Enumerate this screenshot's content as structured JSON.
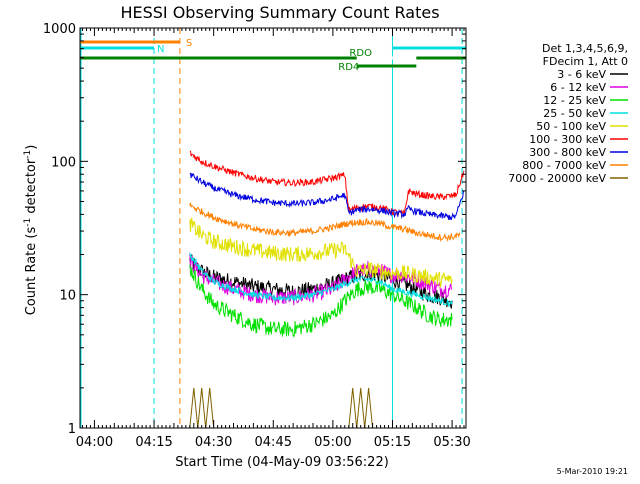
{
  "chart_data": {
    "type": "line",
    "title": "HESSI Observing Summary Count Rates",
    "xlabel": "Start Time (04-May-09 03:56:22)",
    "ylabel_main": "Count Rate (s",
    "ylabel_sup1": "-1",
    "ylabel_mid": " detector",
    "ylabel_sup2": "-1",
    "ylabel_end": ")",
    "y_scale": "log",
    "ylim": [
      1,
      1000
    ],
    "xlim": [
      "03:56:22",
      "05:33:30"
    ],
    "x_ticks": [
      "04:00",
      "04:15",
      "04:30",
      "04:45",
      "05:00",
      "05:15",
      "05:30"
    ],
    "y_ticks": [
      "1",
      "10",
      "100",
      "1000"
    ],
    "legend_position": "right",
    "legend_header": [
      "Det 1,3,4,5,6,9,",
      "FDecim 1, Att 0"
    ],
    "series": [
      {
        "name": "3 - 6 keV",
        "color": "#000000",
        "points": [
          [
            "04:24",
            18
          ],
          [
            "04:27",
            15
          ],
          [
            "04:30",
            13.5
          ],
          [
            "04:35",
            12.5
          ],
          [
            "04:40",
            11.5
          ],
          [
            "04:45",
            11
          ],
          [
            "04:50",
            10.5
          ],
          [
            "04:55",
            11
          ],
          [
            "05:00",
            12
          ],
          [
            "05:03",
            13
          ],
          [
            "05:06",
            14
          ],
          [
            "05:09",
            14.5
          ],
          [
            "05:12",
            14
          ],
          [
            "05:15",
            13
          ],
          [
            "05:18",
            12
          ],
          [
            "05:21",
            11
          ],
          [
            "05:24",
            10
          ],
          [
            "05:27",
            9.5
          ],
          [
            "05:30",
            9
          ]
        ]
      },
      {
        "name": "6 - 12 keV",
        "color": "#e000e0",
        "points": [
          [
            "04:24",
            18
          ],
          [
            "04:27",
            14
          ],
          [
            "04:30",
            12.5
          ],
          [
            "04:35",
            11
          ],
          [
            "04:40",
            10
          ],
          [
            "04:45",
            9.5
          ],
          [
            "04:50",
            9.5
          ],
          [
            "04:55",
            10
          ],
          [
            "05:00",
            11
          ],
          [
            "05:03",
            13
          ],
          [
            "05:06",
            15
          ],
          [
            "05:09",
            15.5
          ],
          [
            "05:12",
            15
          ],
          [
            "05:15",
            14
          ],
          [
            "05:18",
            14
          ],
          [
            "05:21",
            13
          ],
          [
            "05:24",
            12
          ],
          [
            "05:27",
            11
          ],
          [
            "05:30",
            11
          ]
        ]
      },
      {
        "name": "12 - 25 keV",
        "color": "#00e000",
        "points": [
          [
            "04:24",
            16
          ],
          [
            "04:27",
            11
          ],
          [
            "04:30",
            8.5
          ],
          [
            "04:35",
            7
          ],
          [
            "04:40",
            6
          ],
          [
            "04:45",
            5.5
          ],
          [
            "04:50",
            5.5
          ],
          [
            "04:55",
            6
          ],
          [
            "05:00",
            7
          ],
          [
            "05:03",
            9
          ],
          [
            "05:06",
            11
          ],
          [
            "05:09",
            11.5
          ],
          [
            "05:12",
            11
          ],
          [
            "05:15",
            10
          ],
          [
            "05:18",
            9
          ],
          [
            "05:21",
            8
          ],
          [
            "05:24",
            7
          ],
          [
            "05:27",
            6.5
          ],
          [
            "05:30",
            6.5
          ]
        ]
      },
      {
        "name": "25 - 50 keV",
        "color": "#00e0e0",
        "points": [
          [
            "04:24",
            20
          ],
          [
            "04:27",
            15
          ],
          [
            "04:30",
            12.5
          ],
          [
            "04:35",
            11
          ],
          [
            "04:40",
            10
          ],
          [
            "04:45",
            9.5
          ],
          [
            "04:50",
            9.5
          ],
          [
            "04:55",
            10
          ],
          [
            "05:00",
            11
          ],
          [
            "05:03",
            12
          ],
          [
            "05:06",
            13
          ],
          [
            "05:09",
            13
          ],
          [
            "05:12",
            12.5
          ],
          [
            "05:15",
            11
          ],
          [
            "05:18",
            10.5
          ],
          [
            "05:21",
            10
          ],
          [
            "05:24",
            9.5
          ],
          [
            "05:27",
            9
          ],
          [
            "05:30",
            8.5
          ]
        ]
      },
      {
        "name": "50 - 100 keV",
        "color": "#e0e000",
        "points": [
          [
            "04:24",
            34
          ],
          [
            "04:27",
            28
          ],
          [
            "04:30",
            25
          ],
          [
            "04:35",
            23
          ],
          [
            "04:40",
            21.5
          ],
          [
            "04:45",
            20.5
          ],
          [
            "04:50",
            20
          ],
          [
            "04:55",
            20.5
          ],
          [
            "05:00",
            21.5
          ],
          [
            "05:03",
            22
          ],
          [
            "05:06",
            15
          ],
          [
            "05:09",
            15.5
          ],
          [
            "05:12",
            15
          ],
          [
            "05:15",
            14.5
          ],
          [
            "05:18",
            14.5
          ],
          [
            "05:21",
            14
          ],
          [
            "05:24",
            13.5
          ],
          [
            "05:27",
            13
          ],
          [
            "05:30",
            13
          ]
        ]
      },
      {
        "name": "100 - 300 keV",
        "color": "#ff0000",
        "points": [
          [
            "04:24",
            115
          ],
          [
            "04:27",
            100
          ],
          [
            "04:30",
            92
          ],
          [
            "04:35",
            82
          ],
          [
            "04:40",
            75
          ],
          [
            "04:45",
            70
          ],
          [
            "04:50",
            69
          ],
          [
            "04:55",
            70
          ],
          [
            "05:00",
            75
          ],
          [
            "05:03",
            79
          ],
          [
            "05:04",
            43
          ],
          [
            "05:06",
            45
          ],
          [
            "05:09",
            46
          ],
          [
            "05:12",
            45
          ],
          [
            "05:15",
            42
          ],
          [
            "05:18",
            40
          ],
          [
            "05:19",
            60
          ],
          [
            "05:21",
            57
          ],
          [
            "05:24",
            55
          ],
          [
            "05:27",
            54
          ],
          [
            "05:30",
            55
          ],
          [
            "05:31",
            56
          ],
          [
            "05:33",
            85
          ]
        ]
      },
      {
        "name": "300 - 800 keV",
        "color": "#0000e0",
        "points": [
          [
            "04:24",
            80
          ],
          [
            "04:27",
            70
          ],
          [
            "04:30",
            63
          ],
          [
            "04:35",
            56
          ],
          [
            "04:40",
            52
          ],
          [
            "04:45",
            49
          ],
          [
            "04:50",
            48
          ],
          [
            "04:55",
            49
          ],
          [
            "05:00",
            52
          ],
          [
            "05:03",
            56
          ],
          [
            "05:04",
            41
          ],
          [
            "05:06",
            43
          ],
          [
            "05:09",
            44
          ],
          [
            "05:12",
            43
          ],
          [
            "05:15",
            41
          ],
          [
            "05:18",
            40
          ],
          [
            "05:19",
            44
          ],
          [
            "05:21",
            42
          ],
          [
            "05:24",
            40
          ],
          [
            "05:27",
            39
          ],
          [
            "05:30",
            38
          ],
          [
            "05:31",
            39
          ],
          [
            "05:33",
            60
          ]
        ]
      },
      {
        "name": "800 - 7000 keV",
        "color": "#ff8000",
        "points": [
          [
            "04:24",
            47
          ],
          [
            "04:27",
            42
          ],
          [
            "04:30",
            38
          ],
          [
            "04:35",
            34
          ],
          [
            "04:40",
            31
          ],
          [
            "04:45",
            29.5
          ],
          [
            "04:50",
            29
          ],
          [
            "04:55",
            30
          ],
          [
            "05:00",
            32
          ],
          [
            "05:03",
            34
          ],
          [
            "05:06",
            35
          ],
          [
            "05:09",
            35
          ],
          [
            "05:12",
            34
          ],
          [
            "05:15",
            32
          ],
          [
            "05:18",
            31
          ],
          [
            "05:21",
            29
          ],
          [
            "05:24",
            28
          ],
          [
            "05:27",
            27
          ],
          [
            "05:30",
            27
          ],
          [
            "05:32",
            28
          ]
        ]
      },
      {
        "name": "7000 - 20000 keV",
        "color": "#806000",
        "points": [
          [
            "04:24",
            1
          ],
          [
            "04:25",
            2
          ],
          [
            "04:26",
            1
          ],
          [
            "04:27",
            2
          ],
          [
            "04:28",
            1
          ],
          [
            "04:29",
            2
          ],
          [
            "04:30",
            1
          ],
          [
            "05:04",
            1
          ],
          [
            "05:05",
            2
          ],
          [
            "05:06",
            1
          ],
          [
            "05:07",
            2
          ],
          [
            "05:08",
            1
          ],
          [
            "05:09",
            2
          ],
          [
            "05:10",
            1
          ]
        ]
      }
    ],
    "flags": [
      {
        "label": "S",
        "color": "#ff8000",
        "start": "03:56:22",
        "end": "04:21:30"
      },
      {
        "label": "N",
        "color": "#00e0e0",
        "start": "03:56:22",
        "end": "04:15:00"
      },
      {
        "label": "N",
        "color": "#00e0e0",
        "start": "05:15:00",
        "end": "05:33:30"
      },
      {
        "label": "RDO",
        "color": "#008000",
        "start": "03:56:22",
        "end": "05:33:30"
      },
      {
        "label": "RD4",
        "color": "#008000",
        "start": "05:06:00",
        "end": "05:21:00"
      }
    ],
    "vertical_markers": [
      {
        "time": "04:15:00",
        "color": "#00e0e0",
        "style": "dashed"
      },
      {
        "time": "04:21:30",
        "color": "#ff8000",
        "style": "dashed"
      },
      {
        "time": "05:15:00",
        "color": "#00e0e0",
        "style": "solid"
      },
      {
        "time": "05:32:30",
        "color": "#00e0e0",
        "style": "dashed"
      }
    ]
  },
  "footer": {
    "timestamp": "5-Mar-2010 19:21"
  }
}
